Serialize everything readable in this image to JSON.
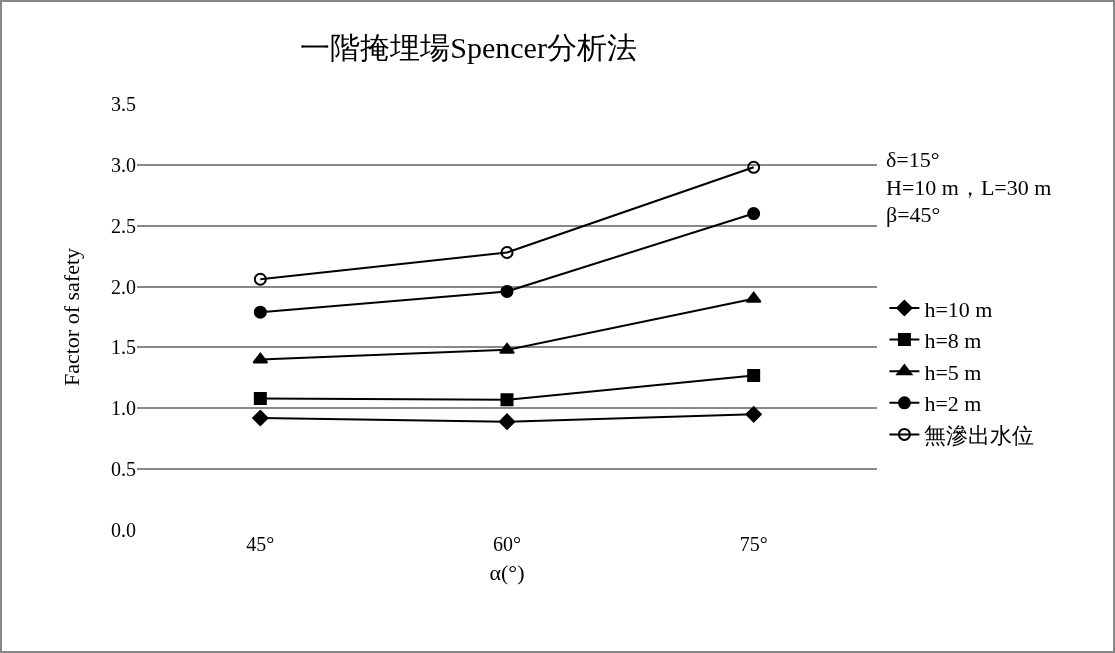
{
  "chart_data": {
    "type": "line",
    "title": "一階掩埋場Spencer分析法",
    "xlabel": "α(°)",
    "ylabel": "Factor of safety",
    "categories": [
      "45°",
      "60°",
      "75°"
    ],
    "ylim": [
      0,
      3.5
    ],
    "yticks": [
      {
        "value": 0,
        "label": "0.0"
      },
      {
        "value": 0.5,
        "label": "0.5"
      },
      {
        "value": 1,
        "label": "1.0"
      },
      {
        "value": 1.5,
        "label": "1.5"
      },
      {
        "value": 2,
        "label": "2.0"
      },
      {
        "value": 2.5,
        "label": "2.5"
      },
      {
        "value": 3,
        "label": "3.0"
      },
      {
        "value": 3.5,
        "label": "3.5"
      }
    ],
    "grid": "y",
    "legend": "right",
    "line_style": "solid",
    "annotations": [
      "δ=15°",
      "H=10 m，L=30 m",
      "β=45°"
    ],
    "series": [
      {
        "name": "h=10 m",
        "color": "#000000",
        "marker": "diamond",
        "values": [
          0.92,
          0.89,
          0.95
        ]
      },
      {
        "name": "h=8 m",
        "color": "#000000",
        "marker": "square",
        "values": [
          1.08,
          1.07,
          1.27
        ]
      },
      {
        "name": "h=5 m",
        "color": "#000000",
        "marker": "triangle",
        "values": [
          1.4,
          1.48,
          1.9
        ]
      },
      {
        "name": "h=2 m",
        "color": "#000000",
        "marker": "circle",
        "values": [
          1.79,
          1.96,
          2.6
        ]
      },
      {
        "name": "無滲出水位",
        "color": "#000000",
        "marker": "circle-open",
        "values": [
          2.06,
          2.28,
          2.98
        ]
      }
    ]
  }
}
